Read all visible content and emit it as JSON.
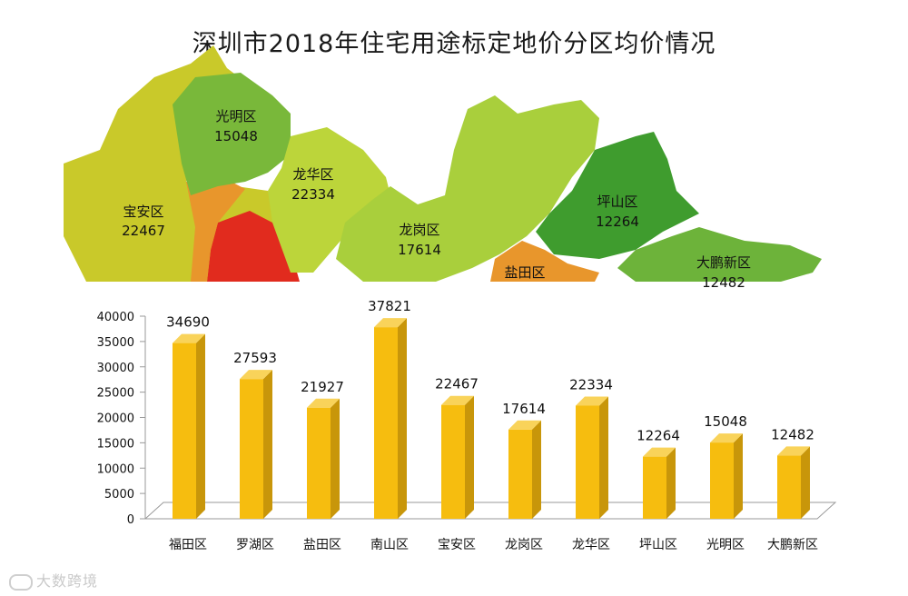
{
  "title": "深圳市2018年住宅用途标定地价分区均价情况",
  "watermark": "大数跨境",
  "colors": {
    "bar_front": "#F6BD0F",
    "bar_side": "#C8960A",
    "bar_top": "#F9D35A",
    "map_red": "#E12B1E",
    "map_orange": "#E8962C",
    "map_yellow": "#C9C92A",
    "map_light_green": "#A9CF3C",
    "map_mid_green": "#79B83A",
    "map_dark_green": "#3F9C2E"
  },
  "map_labels": [
    {
      "name": "光明区",
      "value": "15048"
    },
    {
      "name": "龙华区",
      "value": "22334"
    },
    {
      "name": "宝安区",
      "value": "22467"
    },
    {
      "name": "龙岗区",
      "value": "17614"
    },
    {
      "name": "坪山区",
      "value": "12264"
    },
    {
      "name": "盐田区",
      "value": ""
    },
    {
      "name": "大鹏新区",
      "value": "12482"
    }
  ],
  "chart_data": {
    "type": "bar",
    "categories": [
      "福田区",
      "罗湖区",
      "盐田区",
      "南山区",
      "宝安区",
      "龙岗区",
      "龙华区",
      "坪山区",
      "光明区",
      "大鹏新区"
    ],
    "values": [
      34690,
      27593,
      21927,
      37821,
      22467,
      17614,
      22334,
      12264,
      15048,
      12482
    ],
    "value_labels": [
      "34690",
      "27593",
      "21927",
      "37821",
      "22467",
      "17614",
      "22334",
      "12264",
      "15048",
      "12482"
    ],
    "yticks": [
      "0",
      "5000",
      "10000",
      "15000",
      "20000",
      "25000",
      "30000",
      "35000",
      "40000"
    ],
    "ylim": [
      0,
      40000
    ],
    "grid": false,
    "legend": "none"
  }
}
